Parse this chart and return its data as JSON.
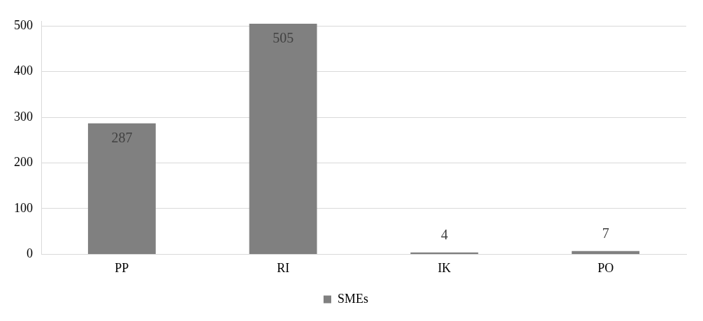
{
  "chart_data": {
    "type": "bar",
    "categories": [
      "PP",
      "RI",
      "IK",
      "PO"
    ],
    "series": [
      {
        "name": "SMEs",
        "color": "#808080",
        "values": [
          287,
          505,
          4,
          7
        ]
      }
    ],
    "ylim": [
      0,
      510
    ],
    "yticks": [
      0,
      100,
      200,
      300,
      400,
      500
    ],
    "grid": "y",
    "legend": "bottom",
    "data_labels": true
  }
}
